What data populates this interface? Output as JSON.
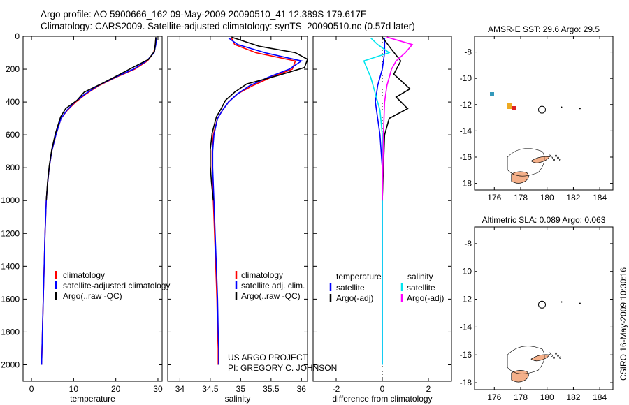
{
  "header": {
    "line1": "Argo profile: AO 5900666_162 09-May-2009 20090510_41 12.389S 179.617E",
    "line2": "Climatology: CARS2009. Satellite-adjusted climatology: synTS_20090510.nc (0.57d later)"
  },
  "credit": {
    "project": "US ARGO PROJECT",
    "pi": "PI: GREGORY C. JOHNSON",
    "stamp": "CSIRO 16-May-2009 10:30:16"
  },
  "colors": {
    "climatology": "#ff0000",
    "satellite": "#0000ff",
    "argo": "#000000",
    "diff_satellite": "#00e5ee",
    "diff_argo": "#ff00ff"
  },
  "chart_data": [
    {
      "type": "line",
      "name": "temperature-profile",
      "xlabel": "temperature",
      "ylabel": "",
      "xlim": [
        -2,
        31
      ],
      "ylim": [
        0,
        2100
      ],
      "y_reversed": true,
      "xticks": [
        0,
        10,
        20,
        30
      ],
      "xtick_labels": [
        "0",
        "10",
        "20",
        "30"
      ],
      "yticks": [
        0,
        200,
        400,
        600,
        800,
        1000,
        1200,
        1400,
        1600,
        1800,
        2000
      ],
      "ytick_labels": [
        "0",
        "200",
        "400",
        "600",
        "800",
        "1000",
        "1200",
        "1400",
        "1600",
        "1800",
        "2000"
      ],
      "legend": [
        {
          "label": "climatology",
          "color": "#ff0000"
        },
        {
          "label": "satellite-adjusted climatology",
          "color": "#0000ff"
        },
        {
          "label": "Argo(..raw -QC)",
          "color": "#000000"
        }
      ],
      "series": [
        {
          "name": "climatology",
          "color": "#ff0000",
          "x": [
            29.5,
            29.4,
            29.0,
            27.5,
            24.5,
            20,
            16,
            13,
            10.5,
            8.5,
            7,
            5.8,
            4.8,
            4.2,
            3.8,
            3.5,
            3.2,
            3.0,
            2.8,
            2.6,
            2.5,
            2.4
          ],
          "y": [
            10,
            50,
            100,
            150,
            200,
            250,
            300,
            350,
            400,
            450,
            500,
            600,
            700,
            800,
            900,
            1000,
            1200,
            1400,
            1600,
            1800,
            1900,
            2000
          ]
        },
        {
          "name": "satellite",
          "color": "#0000ff",
          "x": [
            29.6,
            29.5,
            29.1,
            27.3,
            24.2,
            19.8,
            15.8,
            12.8,
            10.3,
            8.4,
            7,
            5.8,
            4.8,
            4.2,
            3.8,
            3.5,
            3.2,
            3.0,
            2.8,
            2.6,
            2.5,
            2.4
          ],
          "y": [
            10,
            50,
            100,
            150,
            200,
            250,
            300,
            350,
            400,
            450,
            500,
            600,
            700,
            800,
            900,
            1000,
            1200,
            1400,
            1600,
            1800,
            1900,
            2000
          ]
        },
        {
          "name": "argo",
          "color": "#000000",
          "x": [
            29.5,
            29.4,
            29.2,
            27.8,
            24,
            20.3,
            16.5,
            12.5,
            10.8,
            8.1,
            6.9,
            5.7,
            4.8,
            4.2,
            3.8,
            3.5
          ],
          "y": [
            5,
            40,
            90,
            140,
            190,
            240,
            290,
            340,
            390,
            440,
            490,
            590,
            690,
            790,
            890,
            1000
          ]
        }
      ]
    },
    {
      "type": "line",
      "name": "salinity-profile",
      "xlabel": "salinity",
      "xlim": [
        33.8,
        36.1
      ],
      "ylim": [
        0,
        2100
      ],
      "y_reversed": true,
      "xticks": [
        34,
        34.5,
        35,
        35.5,
        36
      ],
      "xtick_labels": [
        "34",
        "34.5",
        "35",
        "35.5",
        "36"
      ],
      "legend": [
        {
          "label": "climatology",
          "color": "#ff0000"
        },
        {
          "label": "satellite adj. clim.",
          "color": "#0000ff"
        },
        {
          "label": "Argo(..raw -QC)",
          "color": "#000000"
        }
      ],
      "series": [
        {
          "name": "climatology",
          "color": "#ff0000",
          "x": [
            34.85,
            34.9,
            35.25,
            35.9,
            35.85,
            35.5,
            35.2,
            34.95,
            34.8,
            34.7,
            34.62,
            34.55,
            34.53,
            34.53,
            34.54,
            34.55,
            34.57,
            34.59,
            34.61,
            34.62,
            34.63,
            34.63
          ],
          "y": [
            10,
            50,
            100,
            150,
            200,
            250,
            300,
            350,
            400,
            450,
            500,
            600,
            700,
            800,
            900,
            1000,
            1200,
            1400,
            1600,
            1800,
            1900,
            2000
          ]
        },
        {
          "name": "satellite",
          "color": "#0000ff",
          "x": [
            34.8,
            34.95,
            35.4,
            36.0,
            35.8,
            35.45,
            35.15,
            34.95,
            34.8,
            34.7,
            34.62,
            34.56,
            34.54,
            34.54,
            34.55,
            34.56,
            34.58,
            34.6,
            34.62,
            34.63,
            34.64,
            34.64
          ],
          "y": [
            10,
            50,
            100,
            150,
            200,
            250,
            300,
            350,
            400,
            450,
            500,
            600,
            700,
            800,
            900,
            1000,
            1200,
            1400,
            1600,
            1800,
            1900,
            2000
          ]
        },
        {
          "name": "argo",
          "color": "#000000",
          "x": [
            34.85,
            35.3,
            35.9,
            36.1,
            36.05,
            35.6,
            35.1,
            34.9,
            34.75,
            34.68,
            34.6,
            34.53,
            34.5,
            34.5,
            34.52,
            34.55
          ],
          "y": [
            5,
            60,
            100,
            140,
            190,
            240,
            290,
            340,
            390,
            440,
            490,
            590,
            690,
            790,
            890,
            1000
          ]
        }
      ]
    },
    {
      "type": "line",
      "name": "difference-profile",
      "xlabel": "difference from climatology",
      "xlim": [
        -3,
        3
      ],
      "ylim": [
        0,
        2100
      ],
      "y_reversed": true,
      "xticks": [
        -2,
        0,
        2
      ],
      "xtick_labels": [
        "-2",
        "0",
        "2"
      ],
      "legend": [
        {
          "group": "temperature",
          "label": "satellite",
          "color": "#0000ff"
        },
        {
          "group": "temperature",
          "label": "Argo(-adj)",
          "color": "#000000"
        },
        {
          "group": "salinity",
          "label": "satellite",
          "color": "#00e5ee"
        },
        {
          "group": "salinity",
          "label": "Argo(-adj)",
          "color": "#ff00ff"
        }
      ],
      "series": [
        {
          "name": "temp-satellite",
          "color": "#0000ff",
          "x": [
            0.1,
            0.1,
            0.0,
            -0.2,
            -0.3,
            -0.2,
            -0.1,
            0,
            0,
            0,
            0,
            0
          ],
          "y": [
            10,
            100,
            200,
            300,
            400,
            500,
            600,
            800,
            1000,
            1400,
            1800,
            2000
          ]
        },
        {
          "name": "temp-argo",
          "color": "#000000",
          "x": [
            0.0,
            0.4,
            0.8,
            0.5,
            1.2,
            0.6,
            1.1,
            0.3,
            0.1,
            0.05,
            0.0
          ],
          "y": [
            5,
            80,
            150,
            230,
            320,
            370,
            440,
            500,
            600,
            800,
            1000
          ]
        },
        {
          "name": "sal-satellite",
          "color": "#00e5ee",
          "x": [
            -0.5,
            -0.2,
            0.3,
            -0.8,
            -0.5,
            -0.3,
            -0.1,
            0,
            0,
            0,
            0,
            0
          ],
          "y": [
            10,
            50,
            100,
            150,
            250,
            350,
            450,
            600,
            800,
            1200,
            1600,
            2000
          ]
        },
        {
          "name": "sal-argo",
          "color": "#ff00ff",
          "x": [
            0.2,
            1.3,
            1.0,
            0.6,
            0.4,
            0.2,
            0.1,
            0.05,
            0.0
          ],
          "y": [
            5,
            50,
            100,
            150,
            200,
            300,
            400,
            600,
            1000
          ]
        }
      ]
    },
    {
      "type": "heatmap",
      "name": "sst-map",
      "title": "AMSR-E SST: 29.6  Argo: 29.5",
      "xlim": [
        174.5,
        185
      ],
      "ylim": [
        -18.5,
        -6.8
      ],
      "xticks": [
        176,
        178,
        180,
        182,
        184
      ],
      "xtick_labels": [
        "176",
        "178",
        "180",
        "182",
        "184"
      ],
      "yticks": [
        -8,
        -10,
        -12,
        -14,
        -16,
        -18
      ],
      "ytick_labels": [
        "-8",
        "-10",
        "-12",
        "-14",
        "-16",
        "-18"
      ],
      "argo_position": [
        179.617,
        -12.389
      ]
    },
    {
      "type": "heatmap",
      "name": "sla-map",
      "title": "Altimetric SLA: 0.089  Argo: 0.063",
      "xlim": [
        174.5,
        185
      ],
      "ylim": [
        -18.5,
        -6.8
      ],
      "xticks": [
        176,
        178,
        180,
        182,
        184
      ],
      "xtick_labels": [
        "176",
        "178",
        "180",
        "182",
        "184"
      ],
      "yticks": [
        -8,
        -10,
        -12,
        -14,
        -16,
        -18
      ],
      "ytick_labels": [
        "-8",
        "-10",
        "-12",
        "-14",
        "-16",
        "-18"
      ],
      "argo_position": [
        179.617,
        -12.389
      ]
    }
  ]
}
